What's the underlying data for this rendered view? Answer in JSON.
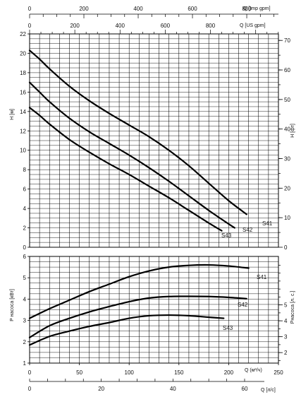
{
  "chart_data": [
    {
      "type": "line",
      "title": "",
      "xlabel": "Q (м³/ч)",
      "ylabel": "H [м]",
      "y2label": "H [фт]",
      "x2label_us": "Q [US gpm]",
      "x2label_imp": "Q [Imp gpm]",
      "xlim": [
        0,
        250
      ],
      "ylim": [
        0,
        22
      ],
      "y2lim": [
        0,
        72.2
      ],
      "grid": true,
      "y_ticks": [
        "0",
        "2",
        "4",
        "6",
        "8",
        "10",
        "12",
        "14",
        "16",
        "18",
        "20",
        "22"
      ],
      "y2_ticks": [
        "0",
        "10",
        "20",
        "30",
        "40",
        "50",
        "60",
        "70"
      ],
      "us_gpm_ticks": [
        "0",
        "200",
        "400",
        "600",
        "800"
      ],
      "imp_gpm_ticks": [
        "0",
        "200",
        "400",
        "600",
        "800"
      ],
      "series": [
        {
          "name": "S41",
          "x": [
            0,
            10,
            20,
            40,
            60,
            80,
            100,
            120,
            140,
            160,
            180,
            200,
            218
          ],
          "y": [
            20.3,
            19.4,
            18.4,
            16.6,
            15.1,
            13.8,
            12.6,
            11.4,
            10.0,
            8.4,
            6.6,
            4.8,
            3.4
          ]
        },
        {
          "name": "S42",
          "x": [
            0,
            10,
            20,
            40,
            60,
            80,
            100,
            120,
            140,
            160,
            180,
            200,
            206
          ],
          "y": [
            17.0,
            16.0,
            15.0,
            13.3,
            11.9,
            10.7,
            9.5,
            8.2,
            6.8,
            5.3,
            3.8,
            2.4,
            2.0
          ]
        },
        {
          "name": "S43",
          "x": [
            0,
            10,
            20,
            40,
            60,
            80,
            100,
            120,
            140,
            160,
            180,
            193
          ],
          "y": [
            14.4,
            13.6,
            12.7,
            11.1,
            9.8,
            8.6,
            7.5,
            6.3,
            5.1,
            3.8,
            2.5,
            1.7
          ]
        }
      ]
    },
    {
      "type": "line",
      "title": "",
      "xlabel": "Q (м³/ч)",
      "x2label": "Q [л/с]",
      "ylabel": "P насоса [кВт]",
      "y2label": "Pнасоса [л. с.]",
      "xlim": [
        0,
        250
      ],
      "ylim": [
        1,
        6
      ],
      "y2lim": [
        1.34,
        8.05
      ],
      "grid": true,
      "x_ticks": [
        "0",
        "50",
        "100",
        "150",
        "200",
        "250"
      ],
      "ls_ticks": [
        "0",
        "20",
        "40",
        "60"
      ],
      "y_ticks": [
        "1",
        "2",
        "3",
        "4",
        "5",
        "6"
      ],
      "y2_ticks": [
        "2",
        "3",
        "4",
        "5"
      ],
      "series": [
        {
          "name": "S41",
          "x": [
            0,
            20,
            40,
            60,
            80,
            100,
            120,
            140,
            160,
            180,
            200,
            220
          ],
          "y": [
            3.1,
            3.55,
            3.95,
            4.35,
            4.7,
            5.05,
            5.32,
            5.5,
            5.58,
            5.6,
            5.55,
            5.45
          ]
        },
        {
          "name": "S42",
          "x": [
            0,
            20,
            40,
            60,
            80,
            100,
            120,
            140,
            160,
            180,
            200,
            218
          ],
          "y": [
            2.2,
            2.75,
            3.1,
            3.4,
            3.65,
            3.88,
            4.05,
            4.12,
            4.13,
            4.12,
            4.08,
            4.02
          ]
        },
        {
          "name": "S43",
          "x": [
            0,
            20,
            40,
            60,
            80,
            100,
            120,
            140,
            160,
            180,
            195
          ],
          "y": [
            1.85,
            2.25,
            2.5,
            2.72,
            2.9,
            3.1,
            3.22,
            3.25,
            3.22,
            3.15,
            3.1
          ]
        }
      ]
    }
  ]
}
